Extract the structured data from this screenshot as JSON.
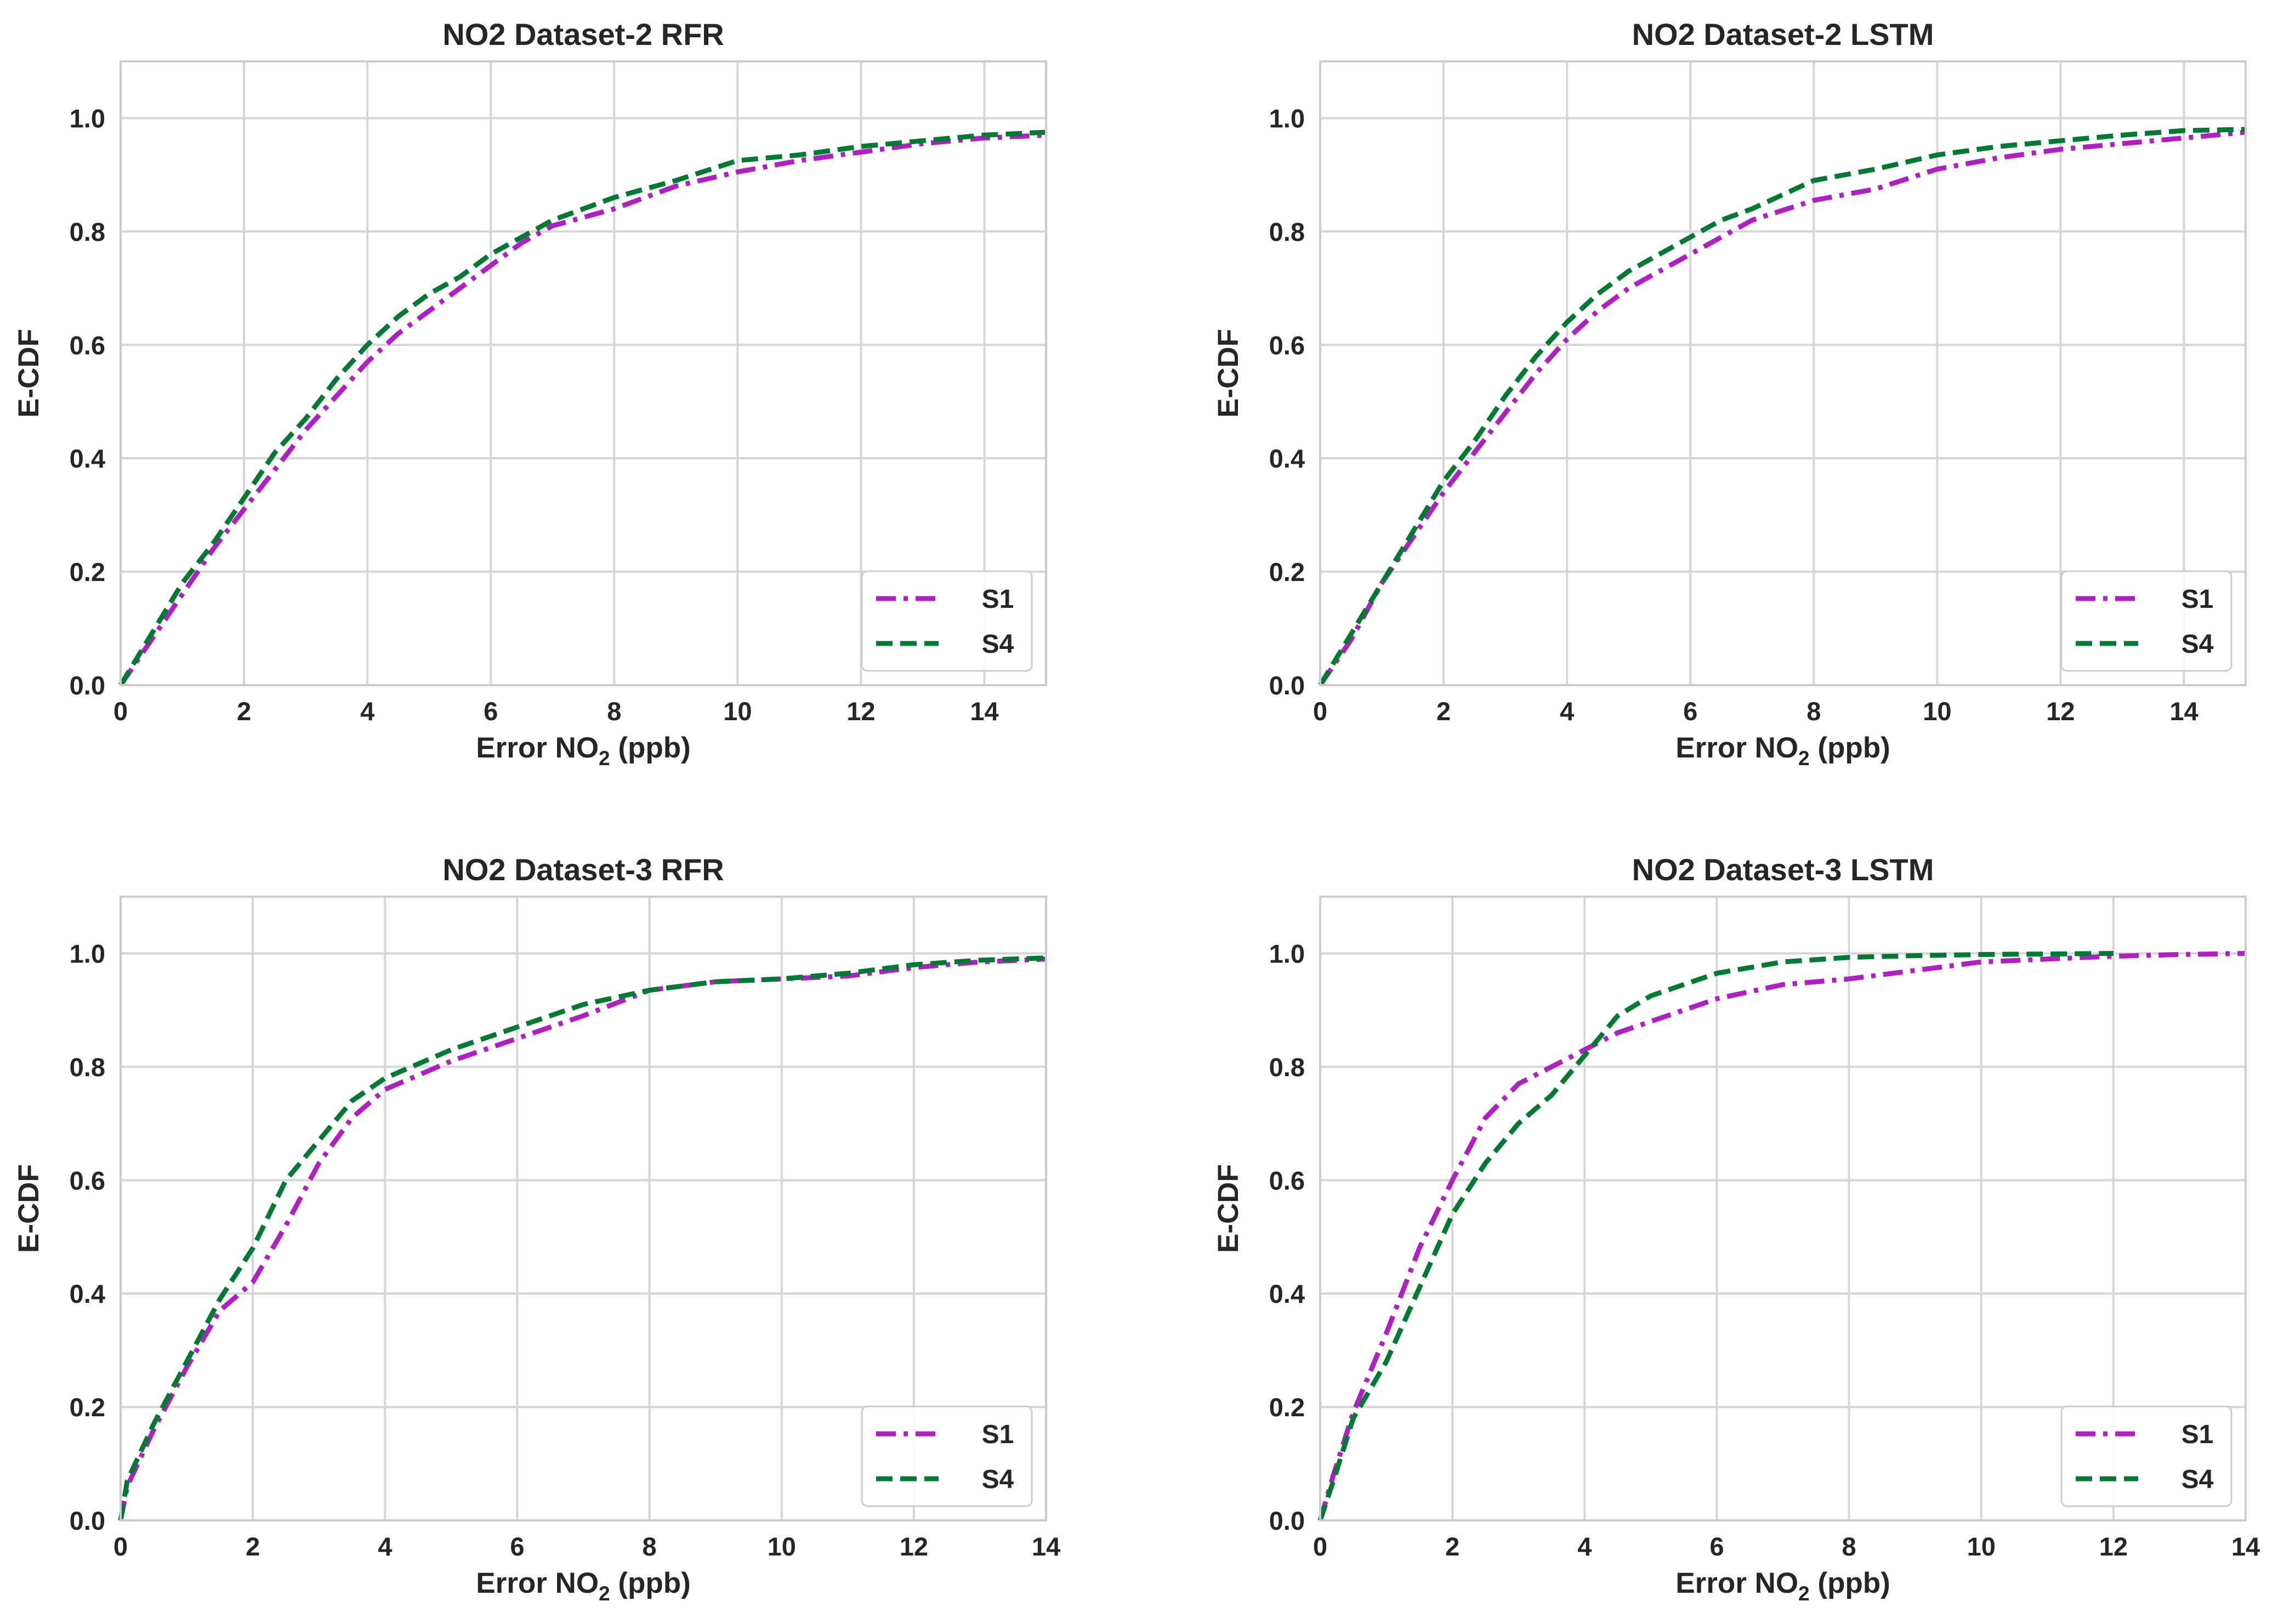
{
  "chart_data": [
    {
      "type": "line",
      "title": "NO2 Dataset-2 RFR",
      "xlabel": "Error NO",
      "xlabel_subscript": "2",
      "xlabel_suffix": " (ppb)",
      "ylabel": "E-CDF",
      "xlim": [
        0,
        15
      ],
      "ylim": [
        0,
        1.1
      ],
      "xticks": [
        0,
        2,
        4,
        6,
        8,
        10,
        12,
        14
      ],
      "xtick_labels": [
        "0",
        "2",
        "4",
        "6",
        "8",
        "10",
        "12",
        "14"
      ],
      "yticks": [
        0,
        0.2,
        0.4,
        0.6,
        0.8,
        1.0
      ],
      "ytick_labels": [
        "0.0",
        "0.2",
        "0.4",
        "0.6",
        "0.8",
        "1.0"
      ],
      "grid": true,
      "legend_position": "lower-right",
      "series": [
        {
          "name": "S1",
          "color": "#b01fc4",
          "dash": "dashdot",
          "x": [
            0,
            0.5,
            1,
            1.5,
            2,
            2.5,
            3,
            3.5,
            4,
            4.5,
            5,
            5.5,
            6,
            6.5,
            7,
            8,
            9,
            10,
            11,
            12,
            13,
            14,
            15
          ],
          "y": [
            0,
            0.08,
            0.16,
            0.24,
            0.31,
            0.38,
            0.45,
            0.51,
            0.57,
            0.62,
            0.66,
            0.7,
            0.74,
            0.78,
            0.81,
            0.84,
            0.88,
            0.905,
            0.925,
            0.94,
            0.955,
            0.965,
            0.97
          ]
        },
        {
          "name": "S4",
          "color": "#007a33",
          "dash": "dashed",
          "x": [
            0,
            0.5,
            1,
            1.5,
            2,
            2.5,
            3,
            3.5,
            4,
            4.5,
            5,
            5.5,
            6,
            6.5,
            7,
            8,
            9,
            10,
            11,
            12,
            13,
            14,
            15
          ],
          "y": [
            0,
            0.09,
            0.18,
            0.25,
            0.33,
            0.41,
            0.47,
            0.54,
            0.6,
            0.65,
            0.69,
            0.72,
            0.76,
            0.79,
            0.82,
            0.86,
            0.89,
            0.925,
            0.935,
            0.95,
            0.96,
            0.97,
            0.975
          ]
        }
      ]
    },
    {
      "type": "line",
      "title": "NO2 Dataset-2 LSTM",
      "xlabel": "Error NO",
      "xlabel_subscript": "2",
      "xlabel_suffix": " (ppb)",
      "ylabel": "E-CDF",
      "xlim": [
        0,
        15
      ],
      "ylim": [
        0,
        1.1
      ],
      "xticks": [
        0,
        2,
        4,
        6,
        8,
        10,
        12,
        14
      ],
      "xtick_labels": [
        "0",
        "2",
        "4",
        "6",
        "8",
        "10",
        "12",
        "14"
      ],
      "yticks": [
        0,
        0.2,
        0.4,
        0.6,
        0.8,
        1.0
      ],
      "ytick_labels": [
        "0.0",
        "0.2",
        "0.4",
        "0.6",
        "0.8",
        "1.0"
      ],
      "grid": true,
      "legend_position": "lower-right",
      "series": [
        {
          "name": "S1",
          "color": "#b01fc4",
          "dash": "dashdot",
          "x": [
            0,
            0.5,
            1,
            1.5,
            2,
            2.5,
            3,
            3.5,
            4,
            4.5,
            5,
            5.5,
            6,
            6.5,
            7,
            8,
            9,
            10,
            11,
            12,
            13,
            14,
            15
          ],
          "y": [
            0,
            0.08,
            0.18,
            0.26,
            0.34,
            0.41,
            0.48,
            0.55,
            0.61,
            0.66,
            0.7,
            0.73,
            0.76,
            0.79,
            0.82,
            0.855,
            0.875,
            0.91,
            0.93,
            0.945,
            0.955,
            0.965,
            0.975
          ]
        },
        {
          "name": "S4",
          "color": "#007a33",
          "dash": "dashed",
          "x": [
            0,
            0.5,
            1,
            1.5,
            2,
            2.5,
            3,
            3.5,
            4,
            4.5,
            5,
            5.5,
            6,
            6.5,
            7,
            8,
            9,
            10,
            11,
            12,
            13,
            14,
            15
          ],
          "y": [
            0,
            0.09,
            0.18,
            0.27,
            0.36,
            0.43,
            0.51,
            0.58,
            0.64,
            0.69,
            0.73,
            0.76,
            0.79,
            0.82,
            0.84,
            0.89,
            0.91,
            0.935,
            0.95,
            0.96,
            0.97,
            0.978,
            0.98
          ]
        }
      ]
    },
    {
      "type": "line",
      "title": "NO2 Dataset-3 RFR",
      "xlabel": "Error NO",
      "xlabel_subscript": "2",
      "xlabel_suffix": " (ppb)",
      "ylabel": "E-CDF",
      "xlim": [
        0,
        14
      ],
      "ylim": [
        0,
        1.1
      ],
      "xticks": [
        0,
        2,
        4,
        6,
        8,
        10,
        12,
        14
      ],
      "xtick_labels": [
        "0",
        "2",
        "4",
        "6",
        "8",
        "10",
        "12",
        "14"
      ],
      "yticks": [
        0,
        0.2,
        0.4,
        0.6,
        0.8,
        1.0
      ],
      "ytick_labels": [
        "0.0",
        "0.2",
        "0.4",
        "0.6",
        "0.8",
        "1.0"
      ],
      "grid": true,
      "legend_position": "lower-right",
      "series": [
        {
          "name": "S1",
          "color": "#b01fc4",
          "dash": "dashdot",
          "x": [
            0,
            0.1,
            0.5,
            1,
            1.5,
            2,
            2.5,
            3,
            3.5,
            4,
            5,
            6,
            7,
            8,
            9,
            10,
            11,
            12,
            13,
            14
          ],
          "y": [
            0,
            0.06,
            0.16,
            0.27,
            0.37,
            0.42,
            0.52,
            0.63,
            0.71,
            0.76,
            0.81,
            0.85,
            0.89,
            0.935,
            0.95,
            0.955,
            0.96,
            0.975,
            0.985,
            0.99
          ]
        },
        {
          "name": "S4",
          "color": "#007a33",
          "dash": "dashed",
          "x": [
            0,
            0.1,
            0.5,
            1,
            1.5,
            2,
            2.5,
            3,
            3.5,
            4,
            5,
            6,
            7,
            8,
            9,
            10,
            11,
            12,
            13,
            14
          ],
          "y": [
            0,
            0.07,
            0.17,
            0.28,
            0.39,
            0.48,
            0.6,
            0.67,
            0.74,
            0.78,
            0.83,
            0.87,
            0.91,
            0.935,
            0.95,
            0.955,
            0.965,
            0.98,
            0.988,
            0.992
          ]
        }
      ]
    },
    {
      "type": "line",
      "title": "NO2 Dataset-3 LSTM",
      "xlabel": "Error NO",
      "xlabel_subscript": "2",
      "xlabel_suffix": " (ppb)",
      "ylabel": "E-CDF",
      "xlim": [
        0,
        14
      ],
      "ylim": [
        0,
        1.1
      ],
      "xticks": [
        0,
        2,
        4,
        6,
        8,
        10,
        12,
        14
      ],
      "xtick_labels": [
        "0",
        "2",
        "4",
        "6",
        "8",
        "10",
        "12",
        "14"
      ],
      "yticks": [
        0,
        0.2,
        0.4,
        0.6,
        0.8,
        1.0
      ],
      "ytick_labels": [
        "0.0",
        "0.2",
        "0.4",
        "0.6",
        "0.8",
        "1.0"
      ],
      "grid": true,
      "legend_position": "lower-right",
      "series": [
        {
          "name": "S1",
          "color": "#b01fc4",
          "dash": "dashdot",
          "x": [
            0,
            0.2,
            0.5,
            1,
            1.5,
            2,
            2.5,
            3,
            3.5,
            4,
            4.5,
            5,
            6,
            7,
            8,
            9,
            10,
            11,
            12,
            13,
            14
          ],
          "y": [
            0,
            0.08,
            0.19,
            0.33,
            0.48,
            0.6,
            0.71,
            0.77,
            0.8,
            0.83,
            0.86,
            0.88,
            0.92,
            0.945,
            0.955,
            0.97,
            0.985,
            0.99,
            0.995,
            0.998,
            1.0
          ]
        },
        {
          "name": "S4",
          "color": "#007a33",
          "dash": "dashed",
          "x": [
            0,
            0.2,
            0.5,
            1,
            1.5,
            2,
            2.5,
            3,
            3.5,
            4,
            4.5,
            5,
            6,
            7,
            8,
            9,
            10,
            11,
            12
          ],
          "y": [
            0,
            0.07,
            0.18,
            0.28,
            0.41,
            0.54,
            0.63,
            0.7,
            0.75,
            0.82,
            0.89,
            0.925,
            0.965,
            0.985,
            0.993,
            0.996,
            0.998,
            0.999,
            1.0
          ]
        }
      ]
    }
  ]
}
